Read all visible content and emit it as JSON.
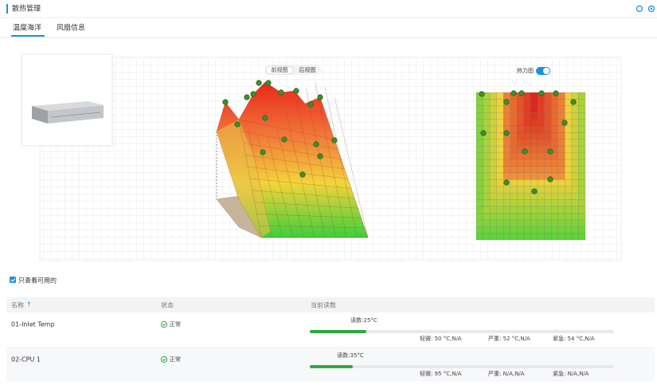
{
  "header": {
    "title": "散热管理"
  },
  "tabs": [
    "温度海洋",
    "风扇信息"
  ],
  "view_toggle": [
    "前视图",
    "后视图"
  ],
  "heatmap_switch": "热力图",
  "filter": "只查看可用的",
  "table": {
    "columns": [
      "名称",
      "状态",
      "当前读数"
    ],
    "rows": [
      {
        "name": "01-Inlet Temp",
        "status": "正常",
        "reading": "读数:25°C",
        "minor": "轻微: 50 °C,N/A",
        "major": "严重: 52 °C,N/A",
        "critical": "紧急: 54 °C,N/A"
      },
      {
        "name": "02-CPU 1",
        "status": "正常",
        "reading": "读数:35°C",
        "minor": "轻微: 95 °C,N/A",
        "major": "严重: N/A,N/A",
        "critical": "紧急: N/A,N/A"
      }
    ]
  }
}
